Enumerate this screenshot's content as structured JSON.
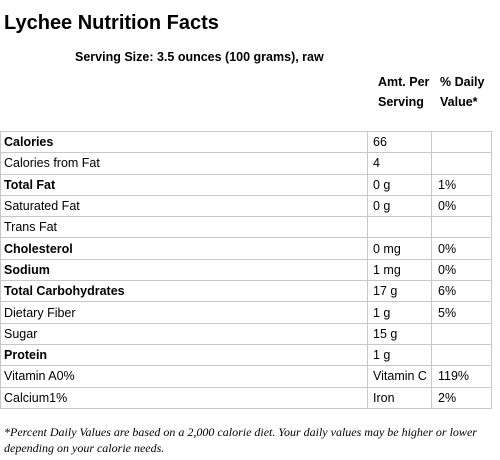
{
  "header": {
    "title": "Lychee Nutrition Facts",
    "serving_size": "Serving Size: 3.5 ounces (100 grams), raw"
  },
  "table": {
    "columns": [
      "Amt. Per Serving",
      "% Daily Value*"
    ],
    "rows": [
      [
        "Calories",
        "66"
      ],
      [
        "Calories from Fat",
        "4"
      ],
      [
        "Total Fat",
        "0 g",
        "1%"
      ],
      [
        "Saturated Fat",
        "0 g",
        "0%"
      ],
      [
        "Trans Fat"
      ],
      [
        "Cholesterol",
        "0 mg",
        "0%"
      ],
      [
        "Sodium",
        "1 mg",
        "0%"
      ],
      [
        "Total Carbohydrates",
        "17 g",
        "6%"
      ],
      [
        "Dietary Fiber",
        "1 g",
        "5%"
      ],
      [
        "Sugar",
        "15 g"
      ],
      [
        "Protein",
        "1 g"
      ],
      [
        "Vitamin A0%",
        "Vitamin C",
        "119%"
      ],
      [
        "Calcium1%",
        "Iron",
        "2%"
      ]
    ]
  },
  "footnote": "*Percent Daily Values are based on a 2,000 calorie diet. Your daily values may be higher or lower depending on your calorie needs."
}
